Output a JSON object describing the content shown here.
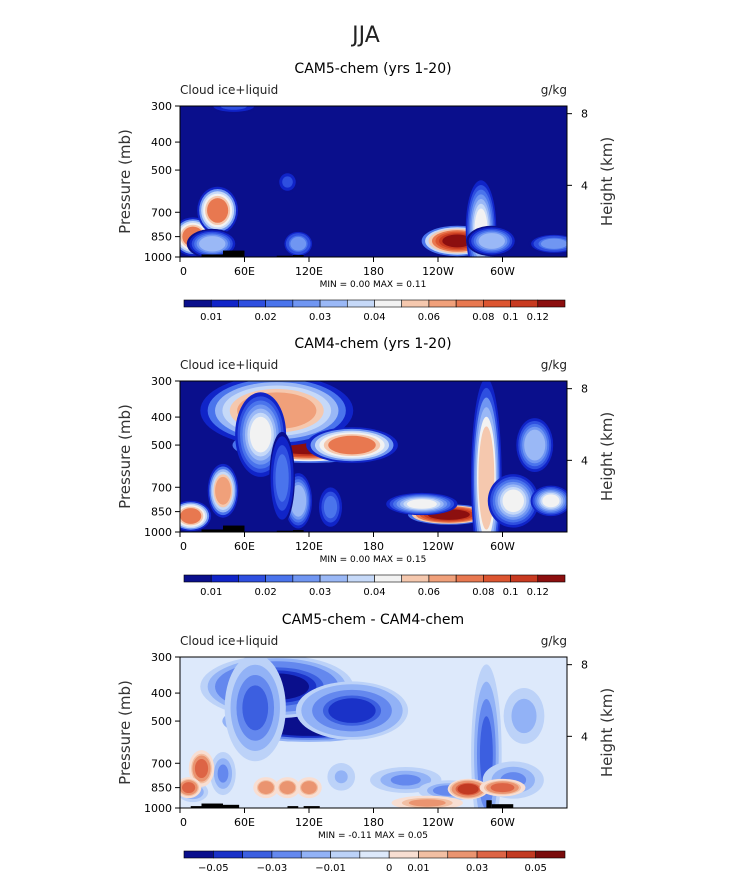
{
  "figure": {
    "title": "JJA"
  },
  "colors": {
    "frame": "#000000",
    "background": "#ffffff",
    "abs_scale": [
      "#0a0f8c",
      "#1024c8",
      "#2e4fe0",
      "#4a74ec",
      "#7096f2",
      "#9ab8f6",
      "#c6d9f8",
      "#f2f2f2",
      "#f5c8ae",
      "#f0a07a",
      "#e87850",
      "#dc5530",
      "#c83a20",
      "#8c0f0f"
    ],
    "diff_scale": [
      "#0a0f8c",
      "#1a32c8",
      "#3c5fe0",
      "#6488ee",
      "#92b2f6",
      "#bcd2f8",
      "#dde9fb",
      "#f8ded2",
      "#f2bfa3",
      "#ea9470",
      "#dd6445",
      "#c23a22",
      "#7a0c0c"
    ],
    "topography": "#000000"
  },
  "panels": [
    {
      "title": "CAM5-chem (yrs 1-20)",
      "left_label": "Cloud ice+liquid",
      "right_label": "g/kg",
      "stats": "MIN =    0.00   MAX =    0.11",
      "colorbar_labels": [
        "0.01",
        "0.02",
        "0.03",
        "0.04",
        "0.06",
        "0.08",
        "0.1",
        "0.12"
      ]
    },
    {
      "title": "CAM4-chem (yrs 1-20)",
      "left_label": "Cloud ice+liquid",
      "right_label": "g/kg",
      "stats": "MIN =    0.00   MAX =    0.15",
      "colorbar_labels": [
        "0.01",
        "0.02",
        "0.03",
        "0.04",
        "0.06",
        "0.08",
        "0.1",
        "0.12"
      ]
    },
    {
      "title": "CAM5-chem - CAM4-chem",
      "left_label": "Cloud ice+liquid",
      "right_label": "g/kg",
      "stats": "MIN =   -0.11   MAX =    0.05",
      "colorbar_labels": [
        "-0.05",
        "-0.03",
        "-0.01",
        "0",
        "0.01",
        "0.03",
        "0.05"
      ]
    }
  ],
  "chart_data": [
    {
      "type": "heatmap",
      "title": "CAM5-chem (yrs 1-20)",
      "variable": "Cloud ice+liquid",
      "units": "g/kg",
      "xlabel": "",
      "ylabel": "Pressure (mb)",
      "y2label": "Height (km)",
      "x_ticks": [
        "0",
        "60E",
        "120E",
        "180",
        "120W",
        "60W"
      ],
      "x_tick_values": [
        0,
        60,
        120,
        180,
        240,
        300
      ],
      "xlim": [
        0,
        360
      ],
      "y_ticks": [
        300,
        400,
        500,
        700,
        850,
        1000
      ],
      "ylim": [
        1000,
        300
      ],
      "y_scale": "log",
      "y2_ticks": [
        8,
        4
      ],
      "min": 0.0,
      "max": 0.11,
      "levels": [
        0.005,
        0.01,
        0.015,
        0.02,
        0.025,
        0.03,
        0.035,
        0.04,
        0.05,
        0.06,
        0.07,
        0.08,
        0.1,
        0.12
      ],
      "topography": [
        [
          20,
          40,
          980
        ],
        [
          40,
          60,
          950
        ],
        [
          90,
          105,
          990
        ],
        [
          105,
          115,
          985
        ]
      ],
      "features": [
        {
          "lon": 12,
          "p": 850,
          "value": 0.07,
          "width_deg": 8,
          "depth_mb": 110
        },
        {
          "lon": 35,
          "p": 690,
          "value": 0.07,
          "width_deg": 8,
          "depth_mb": 110
        },
        {
          "lon": 30,
          "p": 900,
          "value": 0.03,
          "width_deg": 10,
          "depth_mb": 90
        },
        {
          "lon": 258,
          "p": 880,
          "value": 0.11,
          "width_deg": 14,
          "depth_mb": 90
        },
        {
          "lon": 280,
          "p": 800,
          "value": 0.04,
          "width_deg": 6,
          "depth_mb": 260
        },
        {
          "lon": 290,
          "p": 880,
          "value": 0.03,
          "width_deg": 10,
          "depth_mb": 90
        },
        {
          "lon": 110,
          "p": 900,
          "value": 0.025,
          "width_deg": 6,
          "depth_mb": 80
        },
        {
          "lon": 348,
          "p": 900,
          "value": 0.025,
          "width_deg": 10,
          "depth_mb": 60
        },
        {
          "lon": 50,
          "p": 300,
          "value": 0.012,
          "width_deg": 10,
          "depth_mb": 30
        },
        {
          "lon": 100,
          "p": 550,
          "value": 0.012,
          "width_deg": 4,
          "depth_mb": 40
        }
      ]
    },
    {
      "type": "heatmap",
      "title": "CAM4-chem (yrs 1-20)",
      "variable": "Cloud ice+liquid",
      "units": "g/kg",
      "xlabel": "",
      "ylabel": "Pressure (mb)",
      "y2label": "Height (km)",
      "x_ticks": [
        "0",
        "60E",
        "120E",
        "180",
        "120W",
        "60W"
      ],
      "x_tick_values": [
        0,
        60,
        120,
        180,
        240,
        300
      ],
      "xlim": [
        0,
        360
      ],
      "y_ticks": [
        300,
        400,
        500,
        700,
        850,
        1000
      ],
      "ylim": [
        1000,
        300
      ],
      "y_scale": "log",
      "y2_ticks": [
        8,
        4
      ],
      "min": 0.0,
      "max": 0.15,
      "levels": [
        0.005,
        0.01,
        0.015,
        0.02,
        0.025,
        0.03,
        0.035,
        0.04,
        0.05,
        0.06,
        0.07,
        0.08,
        0.1,
        0.12
      ],
      "topography": [
        [
          20,
          40,
          980
        ],
        [
          40,
          60,
          950
        ],
        [
          90,
          105,
          990
        ],
        [
          105,
          115,
          985
        ]
      ],
      "features": [
        {
          "lon": 120,
          "p": 500,
          "value": 0.13,
          "width_deg": 30,
          "depth_mb": 60
        },
        {
          "lon": 90,
          "p": 380,
          "value": 0.06,
          "width_deg": 30,
          "depth_mb": 90
        },
        {
          "lon": 160,
          "p": 500,
          "value": 0.07,
          "width_deg": 18,
          "depth_mb": 60
        },
        {
          "lon": 75,
          "p": 460,
          "value": 0.04,
          "width_deg": 10,
          "depth_mb": 130
        },
        {
          "lon": 40,
          "p": 720,
          "value": 0.06,
          "width_deg": 6,
          "depth_mb": 130
        },
        {
          "lon": 10,
          "p": 880,
          "value": 0.07,
          "width_deg": 8,
          "depth_mb": 90
        },
        {
          "lon": 250,
          "p": 870,
          "value": 0.14,
          "width_deg": 16,
          "depth_mb": 60
        },
        {
          "lon": 225,
          "p": 800,
          "value": 0.04,
          "width_deg": 14,
          "depth_mb": 60
        },
        {
          "lon": 285,
          "p": 650,
          "value": 0.05,
          "width_deg": 6,
          "depth_mb": 420
        },
        {
          "lon": 310,
          "p": 780,
          "value": 0.04,
          "width_deg": 10,
          "depth_mb": 140
        },
        {
          "lon": 330,
          "p": 500,
          "value": 0.03,
          "width_deg": 8,
          "depth_mb": 100
        },
        {
          "lon": 345,
          "p": 780,
          "value": 0.04,
          "width_deg": 8,
          "depth_mb": 80
        },
        {
          "lon": 110,
          "p": 780,
          "value": 0.03,
          "width_deg": 6,
          "depth_mb": 160
        },
        {
          "lon": 140,
          "p": 820,
          "value": 0.02,
          "width_deg": 5,
          "depth_mb": 120
        },
        {
          "lon": 95,
          "p": 650,
          "value": 0.02,
          "width_deg": 5,
          "depth_mb": 200
        }
      ]
    },
    {
      "type": "heatmap",
      "title": "CAM5-chem - CAM4-chem",
      "variable": "Cloud ice+liquid",
      "units": "g/kg",
      "xlabel": "",
      "ylabel": "Pressure (mb)",
      "y2label": "Height (km)",
      "x_ticks": [
        "0",
        "60E",
        "120E",
        "180",
        "120W",
        "60W"
      ],
      "x_tick_values": [
        0,
        60,
        120,
        180,
        240,
        300
      ],
      "xlim": [
        0,
        360
      ],
      "y_ticks": [
        300,
        400,
        500,
        700,
        850,
        1000
      ],
      "ylim": [
        1000,
        300
      ],
      "y_scale": "log",
      "y2_ticks": [
        8,
        4
      ],
      "min": -0.11,
      "max": 0.05,
      "levels": [
        -0.06,
        -0.05,
        -0.04,
        -0.03,
        -0.02,
        -0.01,
        -0.005,
        0.005,
        0.01,
        0.02,
        0.03,
        0.04,
        0.05,
        0.06
      ],
      "topography": [
        [
          10,
          20,
          985
        ],
        [
          20,
          40,
          965
        ],
        [
          40,
          55,
          975
        ],
        [
          100,
          110,
          985
        ],
        [
          115,
          130,
          985
        ],
        [
          285,
          290,
          940
        ],
        [
          290,
          310,
          970
        ]
      ],
      "background_value": -0.008,
      "features": [
        {
          "lon": 120,
          "p": 500,
          "value": -0.11,
          "width_deg": 34,
          "depth_mb": 70
        },
        {
          "lon": 90,
          "p": 380,
          "value": -0.06,
          "width_deg": 30,
          "depth_mb": 80
        },
        {
          "lon": 160,
          "p": 460,
          "value": -0.05,
          "width_deg": 22,
          "depth_mb": 90
        },
        {
          "lon": 70,
          "p": 450,
          "value": -0.04,
          "width_deg": 12,
          "depth_mb": 160
        },
        {
          "lon": 210,
          "p": 800,
          "value": -0.03,
          "width_deg": 14,
          "depth_mb": 70
        },
        {
          "lon": 250,
          "p": 870,
          "value": -0.035,
          "width_deg": 12,
          "depth_mb": 60
        },
        {
          "lon": 285,
          "p": 650,
          "value": -0.04,
          "width_deg": 6,
          "depth_mb": 380
        },
        {
          "lon": 310,
          "p": 800,
          "value": -0.03,
          "width_deg": 12,
          "depth_mb": 100
        },
        {
          "lon": 320,
          "p": 480,
          "value": -0.025,
          "width_deg": 8,
          "depth_mb": 90
        },
        {
          "lon": 40,
          "p": 760,
          "value": -0.03,
          "width_deg": 5,
          "depth_mb": 110
        },
        {
          "lon": 12,
          "p": 880,
          "value": -0.03,
          "width_deg": 6,
          "depth_mb": 60
        },
        {
          "lon": 20,
          "p": 730,
          "value": 0.03,
          "width_deg": 5,
          "depth_mb": 90
        },
        {
          "lon": 8,
          "p": 850,
          "value": 0.03,
          "width_deg": 5,
          "depth_mb": 60
        },
        {
          "lon": 268,
          "p": 860,
          "value": 0.04,
          "width_deg": 8,
          "depth_mb": 60
        },
        {
          "lon": 300,
          "p": 850,
          "value": 0.03,
          "width_deg": 9,
          "depth_mb": 50
        },
        {
          "lon": 230,
          "p": 960,
          "value": 0.015,
          "width_deg": 14,
          "depth_mb": 25
        },
        {
          "lon": 80,
          "p": 850,
          "value": 0.02,
          "width_deg": 5,
          "depth_mb": 60
        },
        {
          "lon": 100,
          "p": 850,
          "value": 0.02,
          "width_deg": 5,
          "depth_mb": 60
        },
        {
          "lon": 120,
          "p": 850,
          "value": 0.02,
          "width_deg": 5,
          "depth_mb": 60
        },
        {
          "lon": 150,
          "p": 780,
          "value": -0.02,
          "width_deg": 6,
          "depth_mb": 80
        }
      ]
    }
  ]
}
